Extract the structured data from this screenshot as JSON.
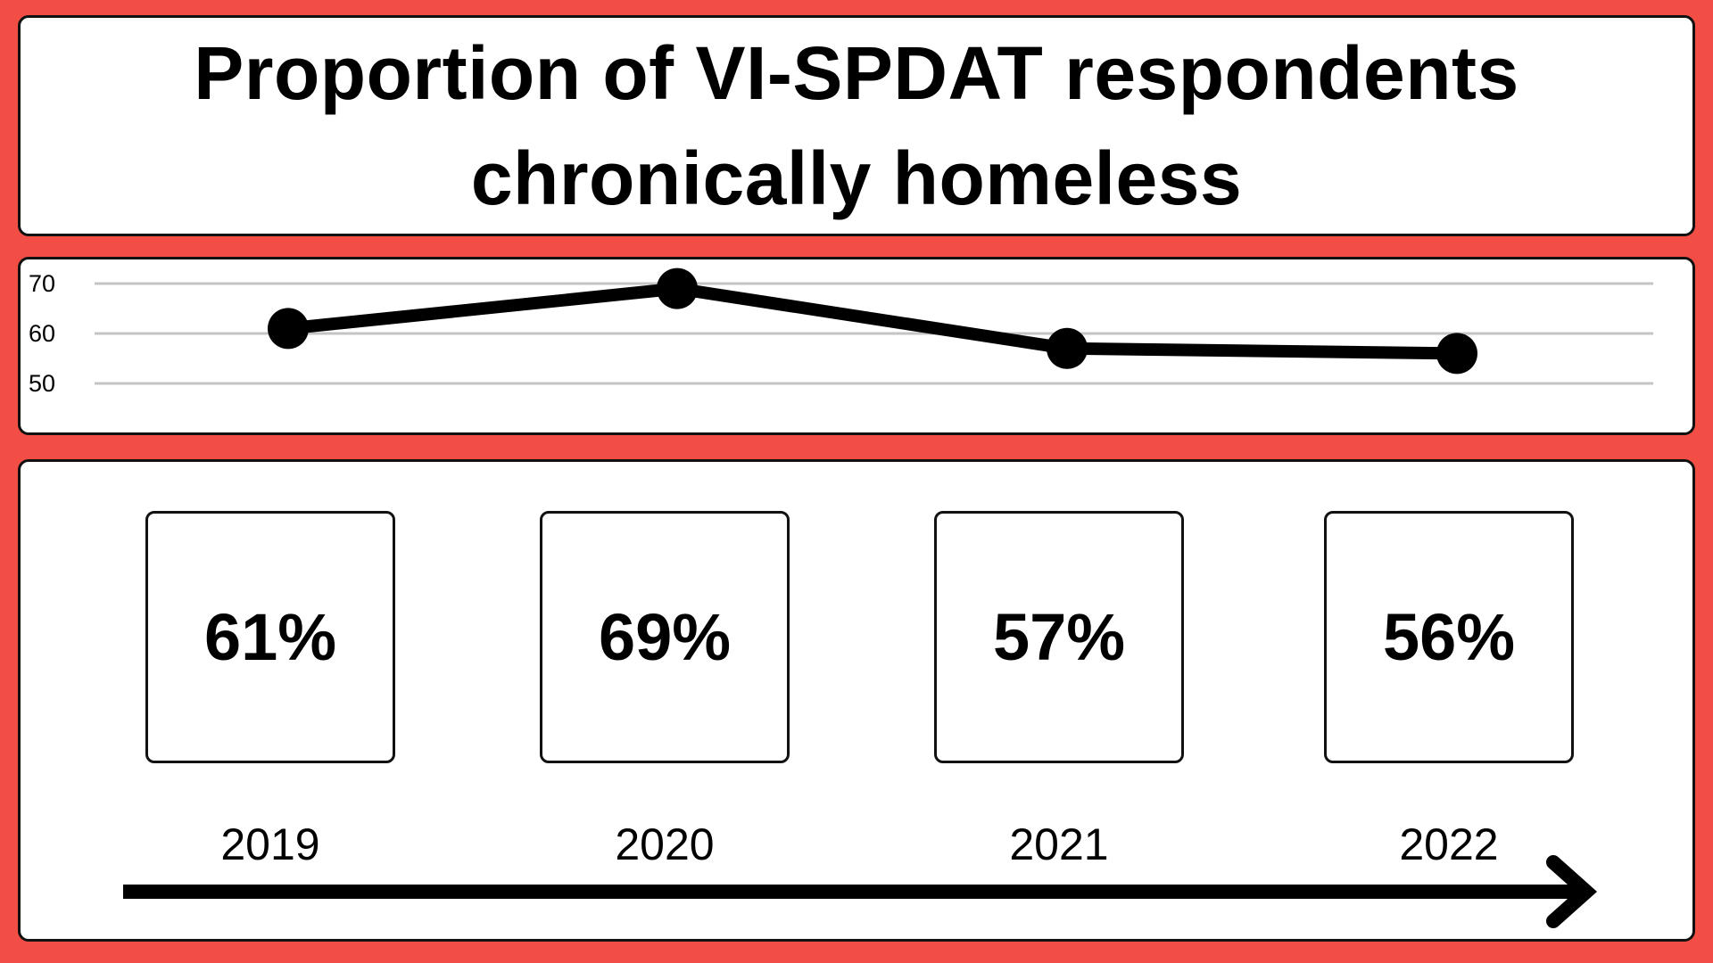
{
  "title": "Proportion of VI-SPDAT respondents chronically homeless",
  "colors": {
    "background": "#f24e45",
    "panel": "#ffffff",
    "ink": "#000000",
    "grid": "#c4c4c4"
  },
  "chart_data": {
    "type": "line",
    "categories": [
      "2019",
      "2020",
      "2021",
      "2022"
    ],
    "series": [
      {
        "values": [
          61,
          69,
          57,
          56
        ]
      }
    ],
    "ylim": [
      50,
      70
    ],
    "yticks": [
      70,
      60,
      50
    ],
    "grid": true,
    "xlabel": "",
    "ylabel": ""
  },
  "stats": [
    {
      "value": "61%",
      "year": "2019"
    },
    {
      "value": "69%",
      "year": "2020"
    },
    {
      "value": "57%",
      "year": "2021"
    },
    {
      "value": "56%",
      "year": "2022"
    }
  ]
}
